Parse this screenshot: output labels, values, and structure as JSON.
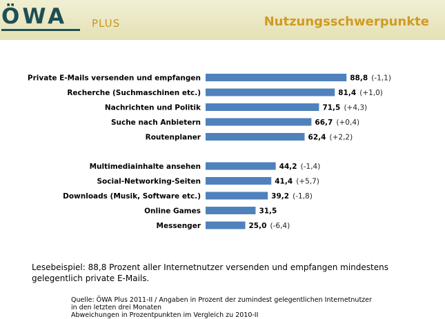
{
  "header": {
    "logo_word": "ÖWA",
    "logo_sub": "PLUS",
    "title": "Nutzungsschwerpunkte"
  },
  "colors": {
    "bar": "#4f81bd",
    "header_bg": "#e9e6c3",
    "title": "#d09b22",
    "logo": "#1d4f55"
  },
  "chart_data": {
    "type": "bar",
    "orientation": "horizontal",
    "categories": [
      "Private E-Mails versenden und empfangen",
      "Recherche (Suchmaschinen etc.)",
      "Nachrichten und Politik",
      "Suche nach Anbietern",
      "Routenplaner",
      "Multimediainhalte ansehen",
      "Social-Networking-Seiten",
      "Downloads (Musik, Software etc.)",
      "Online Games",
      "Messenger"
    ],
    "values": [
      88.8,
      81.4,
      71.5,
      66.7,
      62.4,
      44.2,
      41.4,
      39.2,
      31.5,
      25.0
    ],
    "value_labels": [
      "88,8",
      "81,4",
      "71,5",
      "66,7",
      "62,4",
      "44,2",
      "41,4",
      "39,2",
      "31,5",
      "25,0"
    ],
    "changes": [
      "(-1,1)",
      "(+1,0)",
      "(+4,3)",
      "(+0,4)",
      "(+2,2)",
      "(-1,4)",
      "(+5,7)",
      "(-1,8)",
      "",
      "(-6,4)"
    ],
    "groups": [
      5,
      5
    ],
    "xlim": [
      0,
      100
    ],
    "grid": false,
    "legend": "none"
  },
  "footer": {
    "example": "Lesebeispiel: 88,8 Prozent aller Internetnutzer versenden und empfangen mindestens gelegentlich private E-Mails.",
    "source_lines": [
      "Quelle: ÖWA Plus 2011-II / Angaben in Prozent der zumindest gelegentlichen Internetnutzer",
      "in den letzten drei Monaten",
      "Abweichungen in Prozentpunkten im Vergleich zu 2010-II"
    ]
  }
}
